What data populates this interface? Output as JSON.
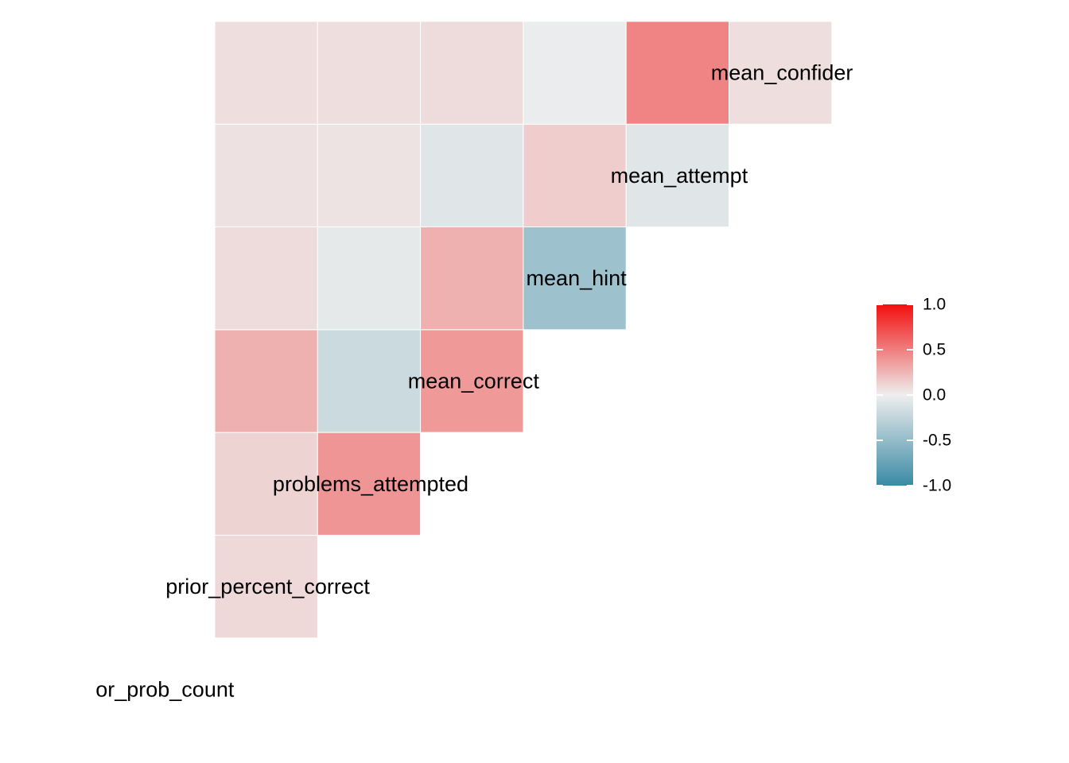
{
  "chart_data": {
    "type": "heatmap",
    "variables": [
      "or_prob_count",
      "prior_percent_correct",
      "problems_attempted",
      "mean_correct",
      "mean_hint",
      "mean_attempt",
      "mean_confider"
    ],
    "cells": [
      {
        "row": "prior_percent_correct",
        "col": "or_prob_count",
        "value": 0.1
      },
      {
        "row": "problems_attempted",
        "col": "or_prob_count",
        "value": 0.12
      },
      {
        "row": "problems_attempted",
        "col": "prior_percent_correct",
        "value": 0.4
      },
      {
        "row": "mean_correct",
        "col": "or_prob_count",
        "value": 0.28
      },
      {
        "row": "mean_correct",
        "col": "prior_percent_correct",
        "value": -0.2
      },
      {
        "row": "mean_correct",
        "col": "problems_attempted",
        "value": 0.38
      },
      {
        "row": "mean_hint",
        "col": "or_prob_count",
        "value": 0.08
      },
      {
        "row": "mean_hint",
        "col": "prior_percent_correct",
        "value": -0.05
      },
      {
        "row": "mean_hint",
        "col": "problems_attempted",
        "value": 0.28
      },
      {
        "row": "mean_hint",
        "col": "mean_correct",
        "value": -0.45
      },
      {
        "row": "mean_attempt",
        "col": "or_prob_count",
        "value": 0.06
      },
      {
        "row": "mean_attempt",
        "col": "prior_percent_correct",
        "value": 0.05
      },
      {
        "row": "mean_attempt",
        "col": "problems_attempted",
        "value": -0.08
      },
      {
        "row": "mean_attempt",
        "col": "mean_correct",
        "value": 0.15
      },
      {
        "row": "mean_attempt",
        "col": "mean_hint",
        "value": -0.08
      },
      {
        "row": "mean_confider",
        "col": "or_prob_count",
        "value": 0.07
      },
      {
        "row": "mean_confider",
        "col": "prior_percent_correct",
        "value": 0.07
      },
      {
        "row": "mean_confider",
        "col": "problems_attempted",
        "value": 0.08
      },
      {
        "row": "mean_confider",
        "col": "mean_correct",
        "value": -0.02
      },
      {
        "row": "mean_confider",
        "col": "mean_hint",
        "value": 0.48
      },
      {
        "row": "mean_confider",
        "col": "mean_attempt",
        "value": 0.07
      }
    ],
    "color_scale": {
      "low": "#3a8aa5",
      "mid": "#eeeeee",
      "high": "#f20f0f",
      "domain": [
        -1,
        0,
        1
      ]
    },
    "legend": {
      "ticks": [
        1.0,
        0.5,
        0.0,
        -0.5,
        -1.0
      ],
      "tick_labels": [
        "1.0",
        "0.5",
        "0.0",
        "-0.5",
        "-1.0"
      ],
      "position": "right"
    },
    "title": "",
    "xlabel": "",
    "ylabel": ""
  }
}
